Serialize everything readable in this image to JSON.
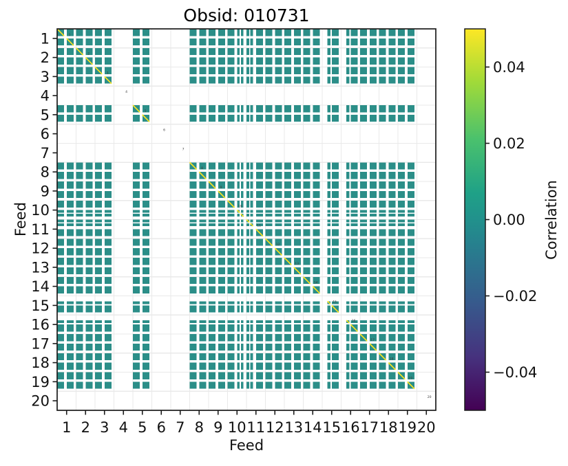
{
  "title": "Obsid: 010731",
  "axes": {
    "xlabel": "Feed",
    "ylabel": "Feed",
    "x_tick_labels": [
      "1",
      "2",
      "3",
      "4",
      "5",
      "6",
      "7",
      "8",
      "9",
      "10",
      "11",
      "12",
      "13",
      "14",
      "15",
      "16",
      "17",
      "18",
      "19",
      "20"
    ],
    "y_tick_labels": [
      "1",
      "2",
      "3",
      "4",
      "5",
      "6",
      "7",
      "8",
      "9",
      "10",
      "11",
      "12",
      "13",
      "14",
      "15",
      "16",
      "17",
      "18",
      "19",
      "20"
    ]
  },
  "colorbar": {
    "label": "Correlation",
    "vmin": -0.05,
    "vmax": 0.05,
    "colormap": "viridis",
    "ticks": [
      {
        "label": "0.04",
        "value": 0.04
      },
      {
        "label": "0.02",
        "value": 0.02
      },
      {
        "label": "0.00",
        "value": 0.0
      },
      {
        "label": "−0.02",
        "value": -0.02
      },
      {
        "label": "−0.04",
        "value": -0.04
      }
    ],
    "gradient_stops_top_to_bottom": [
      {
        "o": 0.0,
        "c": "#fde725"
      },
      {
        "o": 0.14,
        "c": "#a0da39"
      },
      {
        "o": 0.29,
        "c": "#4ac16d"
      },
      {
        "o": 0.43,
        "c": "#1fa187"
      },
      {
        "o": 0.5,
        "c": "#21918c"
      },
      {
        "o": 0.57,
        "c": "#277f8e"
      },
      {
        "o": 0.71,
        "c": "#365c8d"
      },
      {
        "o": 0.86,
        "c": "#46327e"
      },
      {
        "o": 1.0,
        "c": "#440154"
      }
    ]
  },
  "colors": {
    "cell": "#2b8e88",
    "diagonal": "#fbe51f",
    "grid": "#e9e9e9",
    "axis_border": "#1a1a1a",
    "tick_text": "#111111",
    "feed_number_text": "#3a3a3a",
    "background": "#ffffff"
  },
  "chart_data": {
    "type": "heatmap",
    "title": "Obsid: 010731",
    "xlabel": "Feed",
    "ylabel": "Feed",
    "x_range": [
      1,
      20
    ],
    "y_range": [
      1,
      20
    ],
    "value_label": "Correlation",
    "colorbar_range": [
      -0.05,
      0.05
    ],
    "colorbar_ticks": [
      0.04,
      0.02,
      0.0,
      -0.02,
      -0.04
    ],
    "off_diagonal_value": 0.0,
    "diagonal_value": "self-correlation, saturated at colormap maximum (yellow)",
    "absent_feeds": [
      4,
      6,
      7,
      20
    ],
    "partially_masked_feeds": [
      10,
      11,
      15,
      16
    ],
    "grid": "light gray lines at every feed boundary",
    "legend_position": "colorbar right",
    "feeds": [
      {
        "feed": 1,
        "present": true,
        "strips": [
          [
            0,
            0.371
          ],
          [
            0.5,
            0.871
          ]
        ]
      },
      {
        "feed": 2,
        "present": true,
        "strips": [
          [
            0,
            0.371
          ],
          [
            0.5,
            0.871
          ]
        ]
      },
      {
        "feed": 3,
        "present": true,
        "strips": [
          [
            0,
            0.371
          ],
          [
            0.5,
            0.871
          ]
        ]
      },
      {
        "feed": 4,
        "present": false,
        "strips": []
      },
      {
        "feed": 5,
        "present": true,
        "strips": [
          [
            0,
            0.371
          ],
          [
            0.5,
            0.871
          ]
        ]
      },
      {
        "feed": 6,
        "present": false,
        "strips": []
      },
      {
        "feed": 7,
        "present": false,
        "strips": []
      },
      {
        "feed": 8,
        "present": true,
        "strips": [
          [
            0,
            0.371
          ],
          [
            0.5,
            0.871
          ]
        ]
      },
      {
        "feed": 9,
        "present": true,
        "strips": [
          [
            0,
            0.371
          ],
          [
            0.5,
            0.871
          ]
        ]
      },
      {
        "feed": 10,
        "present": true,
        "strips": [
          [
            0,
            0.371
          ],
          [
            0.5,
            0.645
          ],
          [
            0.7,
            0.845
          ]
        ]
      },
      {
        "feed": 11,
        "present": true,
        "strips": [
          [
            0,
            0.145
          ],
          [
            0.2,
            0.345
          ],
          [
            0.5,
            0.871
          ]
        ]
      },
      {
        "feed": 12,
        "present": true,
        "strips": [
          [
            0,
            0.371
          ],
          [
            0.5,
            0.871
          ]
        ]
      },
      {
        "feed": 13,
        "present": true,
        "strips": [
          [
            0,
            0.371
          ],
          [
            0.5,
            0.871
          ]
        ]
      },
      {
        "feed": 14,
        "present": true,
        "strips": [
          [
            0,
            0.371
          ],
          [
            0.5,
            0.871
          ]
        ]
      },
      {
        "feed": 15,
        "present": true,
        "strips": [
          [
            0.28,
            0.43
          ],
          [
            0.5,
            0.871
          ]
        ]
      },
      {
        "feed": 16,
        "present": true,
        "strips": [
          [
            0.28,
            0.43
          ],
          [
            0.5,
            0.871
          ]
        ]
      },
      {
        "feed": 17,
        "present": true,
        "strips": [
          [
            0,
            0.371
          ],
          [
            0.5,
            0.871
          ]
        ]
      },
      {
        "feed": 18,
        "present": true,
        "strips": [
          [
            0,
            0.371
          ],
          [
            0.5,
            0.871
          ]
        ]
      },
      {
        "feed": 19,
        "present": true,
        "strips": [
          [
            0,
            0.371
          ],
          [
            0.5,
            0.871
          ]
        ]
      },
      {
        "feed": 20,
        "present": false,
        "strips": []
      }
    ]
  }
}
